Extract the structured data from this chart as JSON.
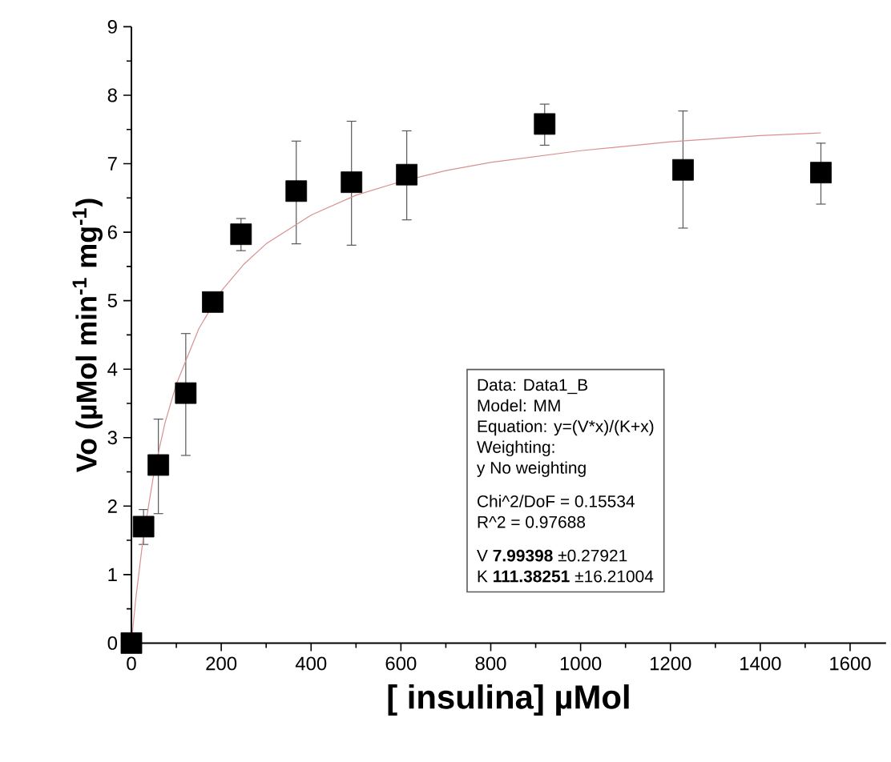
{
  "chart_data": {
    "type": "scatter",
    "xlabel": "[ insulina] µMol",
    "ylabel": "Vo (µMol min$^{-1}$ mg$^{-1}$)",
    "xlim": [
      0,
      1680
    ],
    "xticks": [
      0,
      200,
      400,
      600,
      800,
      1000,
      1200,
      1400,
      1600
    ],
    "ylim": [
      0,
      9
    ],
    "yticks": [
      0,
      1,
      2,
      3,
      4,
      5,
      6,
      7,
      8,
      9
    ],
    "series": [
      {
        "marker": "square",
        "color": "#000000",
        "x": [
          0,
          27,
          60,
          121,
          181,
          244,
          367,
          490,
          613,
          920,
          1228,
          1535
        ],
        "values": [
          0,
          1.7,
          2.6,
          3.65,
          4.98,
          5.97,
          6.6,
          6.73,
          6.84,
          7.58,
          6.91,
          6.87
        ],
        "errors": [
          null,
          [
            1.44,
            1.95
          ],
          [
            1.89,
            3.27
          ],
          [
            2.74,
            4.52
          ],
          null,
          [
            5.73,
            6.2
          ],
          [
            5.83,
            7.33
          ],
          [
            5.81,
            7.62
          ],
          [
            6.18,
            7.48
          ],
          [
            7.27,
            7.87
          ],
          [
            6.06,
            7.77
          ],
          [
            6.41,
            7.3
          ]
        ]
      },
      {
        "type": "line",
        "marker": "none",
        "color": "#d9908f",
        "x": [
          0,
          10,
          25,
          50,
          75,
          100,
          150,
          200,
          250,
          300,
          400,
          500,
          600,
          700,
          800,
          1000,
          1200,
          1400,
          1535
        ],
        "values": [
          0,
          0.66,
          1.47,
          2.48,
          3.22,
          3.78,
          4.59,
          5.14,
          5.53,
          5.83,
          6.25,
          6.54,
          6.74,
          6.9,
          7.02,
          7.19,
          7.32,
          7.41,
          7.45
        ]
      }
    ],
    "annotations": [
      "Data: Data1_B",
      "Model: MM",
      "Equation: y=(V*x)/(K+x)",
      "Weighting:",
      "y No weighting",
      "Chi^2/DoF = 0.15534",
      "R^2 = 0.97688",
      "V **7.99398** ±0.27921",
      "K **111.38251** ±16.21004"
    ]
  }
}
